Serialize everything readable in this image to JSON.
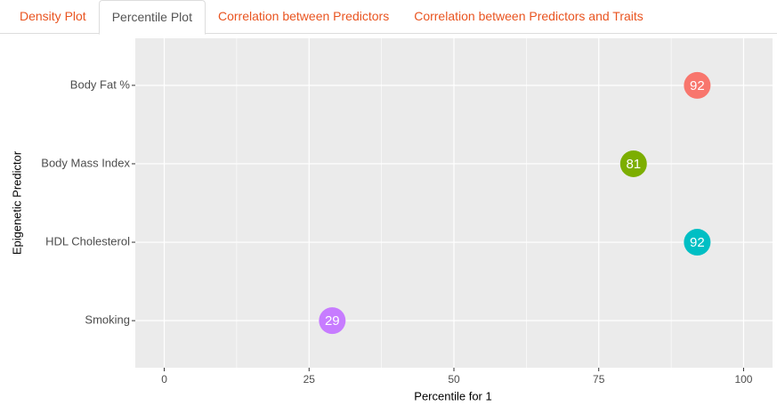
{
  "tabs": [
    "Density Plot",
    "Percentile Plot",
    "Correlation between Predictors",
    "Correlation between Predictors and Traits"
  ],
  "active_tab": 1,
  "chart_data": {
    "type": "dot",
    "categories": [
      "Body Fat %",
      "Body Mass Index",
      "HDL Cholesterol",
      "Smoking"
    ],
    "values": [
      92,
      81,
      92,
      29
    ],
    "colors": [
      "#F8766D",
      "#7CAE00",
      "#00BFC4",
      "#C77CFF"
    ],
    "x_label": "Percentile for 1",
    "y_label": "Epigenetic Predictor",
    "xlim": [
      -5,
      105
    ],
    "xticks": [
      0,
      25,
      50,
      75,
      100
    ],
    "grid": true
  }
}
